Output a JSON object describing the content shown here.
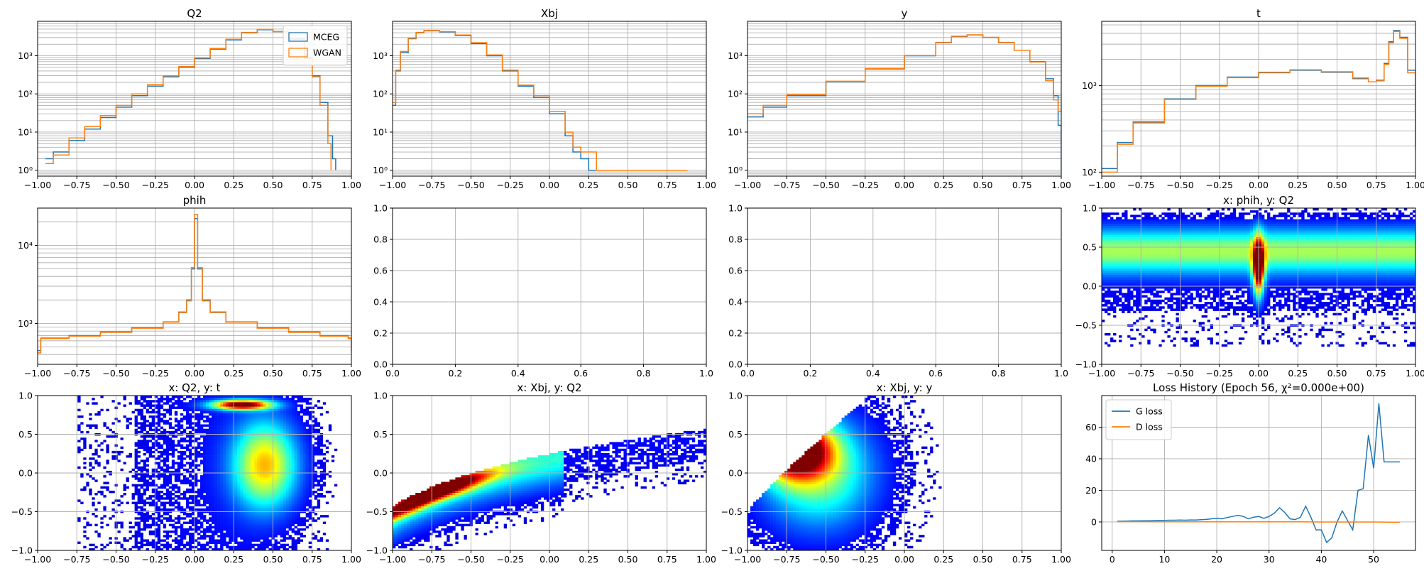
{
  "figure": {
    "background": "#ffffff",
    "grid_color": "#b0b0b0"
  },
  "chart_data": [
    {
      "id": "p0",
      "type": "line",
      "step": true,
      "title": "Q2",
      "yscale": "log",
      "xlim": [
        -1,
        1
      ],
      "ylim": [
        0.7,
        8000
      ],
      "xticks": [
        -1,
        -0.75,
        -0.5,
        -0.25,
        0,
        0.25,
        0.5,
        0.75,
        1
      ],
      "xticklabels": [
        "−1.00",
        "−0.75",
        "−0.50",
        "−0.25",
        "0.00",
        "0.25",
        "0.50",
        "0.75",
        "1.00"
      ],
      "yticks": [
        1,
        10,
        100,
        1000
      ],
      "yticklabels": [
        "10⁰",
        "10¹",
        "10²",
        "10³"
      ],
      "legend": {
        "loc": "upper right",
        "entries": [
          "MCEG",
          "WGAN"
        ]
      },
      "series": [
        {
          "name": "MCEG",
          "color": "#1f77b4",
          "x": [
            -0.95,
            -0.9,
            -0.8,
            -0.7,
            -0.6,
            -0.5,
            -0.4,
            -0.3,
            -0.2,
            -0.1,
            0,
            0.1,
            0.2,
            0.3,
            0.4,
            0.5,
            0.6,
            0.7,
            0.75,
            0.8,
            0.85,
            0.88,
            0.9
          ],
          "y": [
            2,
            3,
            6,
            12,
            24,
            45,
            90,
            160,
            280,
            500,
            850,
            1500,
            2600,
            4000,
            4800,
            4300,
            2800,
            900,
            300,
            60,
            8,
            2,
            1
          ]
        },
        {
          "name": "WGAN",
          "color": "#ff7f0e",
          "x": [
            -0.95,
            -0.9,
            -0.8,
            -0.7,
            -0.6,
            -0.5,
            -0.4,
            -0.3,
            -0.2,
            -0.1,
            0,
            0.1,
            0.2,
            0.3,
            0.4,
            0.5,
            0.6,
            0.7,
            0.75,
            0.8,
            0.85,
            0.87
          ],
          "y": [
            1.5,
            2.5,
            7,
            14,
            27,
            50,
            100,
            175,
            300,
            520,
            880,
            1550,
            2700,
            4100,
            4900,
            4300,
            2700,
            850,
            280,
            50,
            5,
            1
          ]
        }
      ]
    },
    {
      "id": "p1",
      "type": "line",
      "step": true,
      "title": "Xbj",
      "yscale": "log",
      "xlim": [
        -1,
        1
      ],
      "ylim": [
        0.7,
        8000
      ],
      "xticks": [
        -1,
        -0.75,
        -0.5,
        -0.25,
        0,
        0.25,
        0.5,
        0.75,
        1
      ],
      "xticklabels": [
        "−1.00",
        "−0.75",
        "−0.50",
        "−0.25",
        "0.00",
        "0.25",
        "0.50",
        "0.75",
        "1.00"
      ],
      "yticks": [
        1,
        10,
        100,
        1000
      ],
      "yticklabels": [
        "10⁰",
        "10¹",
        "10²",
        "10³"
      ],
      "series": [
        {
          "name": "MCEG",
          "color": "#1f77b4",
          "x": [
            -1,
            -0.98,
            -0.95,
            -0.9,
            -0.85,
            -0.8,
            -0.7,
            -0.6,
            -0.5,
            -0.4,
            -0.3,
            -0.2,
            -0.1,
            0,
            0.1,
            0.15,
            0.2,
            0.25,
            0.3
          ],
          "y": [
            50,
            400,
            1200,
            2800,
            4000,
            4500,
            4200,
            3400,
            2100,
            1000,
            400,
            160,
            80,
            30,
            8,
            3,
            2,
            1,
            1
          ]
        },
        {
          "name": "WGAN",
          "color": "#ff7f0e",
          "x": [
            -1,
            -0.98,
            -0.95,
            -0.9,
            -0.85,
            -0.8,
            -0.7,
            -0.6,
            -0.5,
            -0.4,
            -0.3,
            -0.2,
            -0.1,
            0,
            0.1,
            0.15,
            0.2,
            0.3,
            0.4,
            0.5,
            0.6,
            0.7,
            0.88
          ],
          "y": [
            60,
            420,
            1300,
            2900,
            4100,
            4600,
            4300,
            3500,
            2200,
            1050,
            420,
            170,
            90,
            35,
            10,
            4,
            3,
            1,
            1,
            1,
            1,
            1,
            1
          ]
        }
      ]
    },
    {
      "id": "p2",
      "type": "line",
      "step": true,
      "title": "y",
      "yscale": "log",
      "xlim": [
        -1,
        1
      ],
      "ylim": [
        0.7,
        8000
      ],
      "xticks": [
        -1,
        -0.75,
        -0.5,
        -0.25,
        0,
        0.25,
        0.5,
        0.75,
        1
      ],
      "xticklabels": [
        "−1.00",
        "−0.75",
        "−0.50",
        "−0.25",
        "0.00",
        "0.25",
        "0.50",
        "0.75",
        "1.00"
      ],
      "yticks": [
        1,
        10,
        100,
        1000
      ],
      "yticklabels": [
        "10⁰",
        "10¹",
        "10²",
        "10³"
      ],
      "series": [
        {
          "name": "MCEG",
          "color": "#1f77b4",
          "x": [
            -1,
            -0.9,
            -0.75,
            -0.5,
            -0.25,
            0,
            0.2,
            0.3,
            0.4,
            0.5,
            0.6,
            0.7,
            0.8,
            0.9,
            0.95,
            0.98,
            1
          ],
          "y": [
            25,
            45,
            90,
            210,
            450,
            1000,
            2200,
            3200,
            3500,
            3000,
            2200,
            1400,
            700,
            250,
            90,
            15,
            1
          ]
        },
        {
          "name": "WGAN",
          "color": "#ff7f0e",
          "x": [
            -1,
            -0.9,
            -0.75,
            -0.5,
            -0.25,
            0,
            0.2,
            0.3,
            0.4,
            0.5,
            0.6,
            0.7,
            0.8,
            0.9,
            0.95,
            0.98,
            1
          ],
          "y": [
            30,
            50,
            95,
            215,
            460,
            1020,
            2250,
            3250,
            3550,
            3050,
            2250,
            1400,
            690,
            220,
            70,
            35,
            45
          ]
        }
      ]
    },
    {
      "id": "p3",
      "type": "line",
      "step": true,
      "title": "t",
      "yscale": "log",
      "xlim": [
        -1,
        1
      ],
      "ylim": [
        90,
        5500
      ],
      "xticks": [
        -1,
        -0.75,
        -0.5,
        -0.25,
        0,
        0.25,
        0.5,
        0.75,
        1
      ],
      "xticklabels": [
        "−1.00",
        "−0.75",
        "−0.50",
        "−0.25",
        "0.00",
        "0.25",
        "0.50",
        "0.75",
        "1.00"
      ],
      "yticks": [
        100,
        1000
      ],
      "yticklabels": [
        "10²",
        "10³"
      ],
      "series": [
        {
          "name": "MCEG",
          "color": "#1f77b4",
          "x": [
            -1,
            -0.9,
            -0.8,
            -0.6,
            -0.4,
            -0.2,
            0,
            0.2,
            0.4,
            0.6,
            0.7,
            0.75,
            0.8,
            0.83,
            0.86,
            0.9,
            0.95,
            1
          ],
          "y": [
            110,
            220,
            380,
            700,
            1000,
            1250,
            1420,
            1500,
            1420,
            1200,
            1100,
            1150,
            1800,
            3200,
            4300,
            3600,
            1500,
            200
          ]
        },
        {
          "name": "WGAN",
          "color": "#ff7f0e",
          "x": [
            -1,
            -0.9,
            -0.8,
            -0.6,
            -0.4,
            -0.2,
            0,
            0.2,
            0.4,
            0.6,
            0.7,
            0.75,
            0.8,
            0.83,
            0.86,
            0.9,
            0.95,
            1
          ],
          "y": [
            100,
            210,
            370,
            690,
            980,
            1230,
            1400,
            1520,
            1440,
            1220,
            1100,
            1130,
            1750,
            3100,
            4200,
            3500,
            1400,
            180
          ]
        }
      ]
    },
    {
      "id": "p4",
      "type": "line",
      "step": true,
      "title": "phih",
      "yscale": "log",
      "xlim": [
        -1,
        1
      ],
      "ylim": [
        300,
        30000
      ],
      "xticks": [
        -1,
        -0.75,
        -0.5,
        -0.25,
        0,
        0.25,
        0.5,
        0.75,
        1
      ],
      "xticklabels": [
        "−1.00",
        "−0.75",
        "−0.50",
        "−0.25",
        "0.00",
        "0.25",
        "0.50",
        "0.75",
        "1.00"
      ],
      "yticks": [
        1000,
        10000
      ],
      "yticklabels": [
        "10³",
        "10⁴"
      ],
      "series": [
        {
          "name": "MCEG",
          "color": "#1f77b4",
          "x": [
            -1,
            -0.98,
            -0.8,
            -0.6,
            -0.4,
            -0.2,
            -0.1,
            -0.05,
            -0.02,
            0,
            0.02,
            0.05,
            0.1,
            0.2,
            0.4,
            0.6,
            0.8,
            0.98,
            1
          ],
          "y": [
            450,
            650,
            700,
            780,
            880,
            1050,
            1400,
            2000,
            5000,
            22000,
            5000,
            2000,
            1400,
            1050,
            880,
            780,
            700,
            650,
            450
          ]
        },
        {
          "name": "WGAN",
          "color": "#ff7f0e",
          "x": [
            -1,
            -0.98,
            -0.8,
            -0.6,
            -0.4,
            -0.2,
            -0.1,
            -0.05,
            -0.02,
            0,
            0.02,
            0.05,
            0.1,
            0.2,
            0.4,
            0.6,
            0.8,
            0.98,
            1
          ],
          "y": [
            420,
            640,
            690,
            770,
            870,
            1040,
            1380,
            1950,
            5200,
            25000,
            5200,
            1950,
            1380,
            1040,
            870,
            770,
            690,
            640,
            420
          ]
        }
      ]
    },
    {
      "id": "p5",
      "type": "line",
      "title": "",
      "xlim": [
        0,
        1
      ],
      "ylim": [
        0,
        1
      ],
      "xticks": [
        0,
        0.2,
        0.4,
        0.6,
        0.8,
        1
      ],
      "xticklabels": [
        "0.0",
        "0.2",
        "0.4",
        "0.6",
        "0.8",
        "1.0"
      ],
      "yticks": [
        0,
        0.2,
        0.4,
        0.6,
        0.8,
        1
      ],
      "yticklabels": [
        "0.0",
        "0.2",
        "0.4",
        "0.6",
        "0.8",
        "1.0"
      ],
      "series": []
    },
    {
      "id": "p6",
      "type": "line",
      "title": "",
      "xlim": [
        0,
        1
      ],
      "ylim": [
        0,
        1
      ],
      "xticks": [
        0,
        0.2,
        0.4,
        0.6,
        0.8,
        1
      ],
      "xticklabels": [
        "0.0",
        "0.2",
        "0.4",
        "0.6",
        "0.8",
        "1.0"
      ],
      "yticks": [
        0,
        0.2,
        0.4,
        0.6,
        0.8,
        1
      ],
      "yticklabels": [
        "0.0",
        "0.2",
        "0.4",
        "0.6",
        "0.8",
        "1.0"
      ],
      "series": []
    },
    {
      "id": "p7",
      "type": "heatmap",
      "title": "x: phih, y: Q2",
      "xlim": [
        -1,
        1
      ],
      "ylim": [
        -1,
        1
      ],
      "xticks": [
        -1,
        -0.75,
        -0.5,
        -0.25,
        0,
        0.25,
        0.5,
        0.75,
        1
      ],
      "xticklabels": [
        "−1.00",
        "−0.75",
        "−0.50",
        "−0.25",
        "0.00",
        "0.25",
        "0.50",
        "0.75",
        "1.00"
      ],
      "yticks": [
        -1,
        -0.5,
        0,
        0.5,
        1
      ],
      "yticklabels": [
        "−1.0",
        "−0.5",
        "0.0",
        "0.5",
        "1.0"
      ],
      "colormap": "jet",
      "description_points": {
        "band_center_y": 0.45,
        "peak_x": 0.0
      }
    },
    {
      "id": "p8",
      "type": "heatmap",
      "title": "x: Q2, y: t",
      "xlim": [
        -1,
        1
      ],
      "ylim": [
        -1,
        1
      ],
      "xticks": [
        -1,
        -0.75,
        -0.5,
        -0.25,
        0,
        0.25,
        0.5,
        0.75,
        1
      ],
      "xticklabels": [
        "−1.00",
        "−0.75",
        "−0.50",
        "−0.25",
        "0.00",
        "0.25",
        "0.50",
        "0.75",
        "1.00"
      ],
      "yticks": [
        -1,
        -0.5,
        0,
        0.5,
        1
      ],
      "yticklabels": [
        "−1.0",
        "−0.5",
        "0.0",
        "0.5",
        "1.0"
      ],
      "colormap": "jet"
    },
    {
      "id": "p9",
      "type": "heatmap",
      "title": "x: Xbj, y: Q2",
      "xlim": [
        -1,
        1
      ],
      "ylim": [
        -1,
        1
      ],
      "xticks": [
        -1,
        -0.75,
        -0.5,
        -0.25,
        0,
        0.25,
        0.5,
        0.75,
        1
      ],
      "xticklabels": [
        "−1.00",
        "−0.75",
        "−0.50",
        "−0.25",
        "0.00",
        "0.25",
        "0.50",
        "0.75",
        "1.00"
      ],
      "yticks": [
        -1,
        -0.5,
        0,
        0.5,
        1
      ],
      "yticklabels": [
        "−1.0",
        "−0.5",
        "0.0",
        "0.5",
        "1.0"
      ],
      "colormap": "jet"
    },
    {
      "id": "p10",
      "type": "heatmap",
      "title": "x: Xbj, y: y",
      "xlim": [
        -1,
        1
      ],
      "ylim": [
        -1,
        1
      ],
      "xticks": [
        -1,
        -0.75,
        -0.5,
        -0.25,
        0,
        0.25,
        0.5,
        0.75,
        1
      ],
      "xticklabels": [
        "−1.00",
        "−0.75",
        "−0.50",
        "−0.25",
        "0.00",
        "0.25",
        "0.50",
        "0.75",
        "1.00"
      ],
      "yticks": [
        -1,
        -0.5,
        0,
        0.5,
        1
      ],
      "yticklabels": [
        "−1.0",
        "−0.5",
        "0.0",
        "0.5",
        "1.0"
      ],
      "colormap": "jet"
    },
    {
      "id": "p11",
      "type": "line",
      "title": "Loss History (Epoch 56, χ²=0.000e+00)",
      "xlim": [
        -2,
        58
      ],
      "ylim": [
        -18,
        80
      ],
      "xticks": [
        0,
        10,
        20,
        30,
        40,
        50
      ],
      "xticklabels": [
        "0",
        "10",
        "20",
        "30",
        "40",
        "50"
      ],
      "yticks": [
        0,
        20,
        40,
        60
      ],
      "yticklabels": [
        "0",
        "20",
        "40",
        "60"
      ],
      "legend": {
        "loc": "upper left",
        "entries": [
          "G loss",
          "D loss"
        ]
      },
      "series": [
        {
          "name": "G loss",
          "color": "#1f77b4",
          "x": [
            1,
            2,
            3,
            4,
            5,
            6,
            7,
            8,
            9,
            10,
            11,
            12,
            13,
            14,
            15,
            16,
            17,
            18,
            19,
            20,
            21,
            22,
            23,
            24,
            25,
            26,
            27,
            28,
            29,
            30,
            31,
            32,
            33,
            34,
            35,
            36,
            37,
            38,
            39,
            40,
            41,
            42,
            43,
            44,
            45,
            46,
            47,
            48,
            49,
            50,
            51,
            52,
            53,
            54,
            55
          ],
          "y": [
            0.5,
            0.5,
            0.6,
            0.7,
            0.7,
            0.8,
            0.8,
            0.9,
            1,
            1,
            1.1,
            1.1,
            1.2,
            1.1,
            1.3,
            1.2,
            1.4,
            1.6,
            2,
            2.4,
            2,
            2.8,
            3.5,
            4.2,
            3.6,
            2,
            3,
            3.5,
            2.3,
            3.5,
            5.5,
            9,
            6,
            2,
            1.5,
            3,
            10,
            3,
            -5,
            -5,
            -13,
            -10,
            0,
            7,
            1,
            -5,
            20,
            21,
            55,
            34,
            75,
            38,
            38,
            38,
            38
          ]
        },
        {
          "name": "D loss",
          "color": "#ff7f0e",
          "x": [
            1,
            5,
            10,
            15,
            20,
            25,
            30,
            35,
            40,
            45,
            50,
            55
          ],
          "y": [
            0.2,
            0.2,
            0.1,
            0.1,
            0.1,
            0.1,
            0.1,
            0.1,
            0,
            0,
            0,
            -0.2
          ]
        }
      ]
    }
  ]
}
